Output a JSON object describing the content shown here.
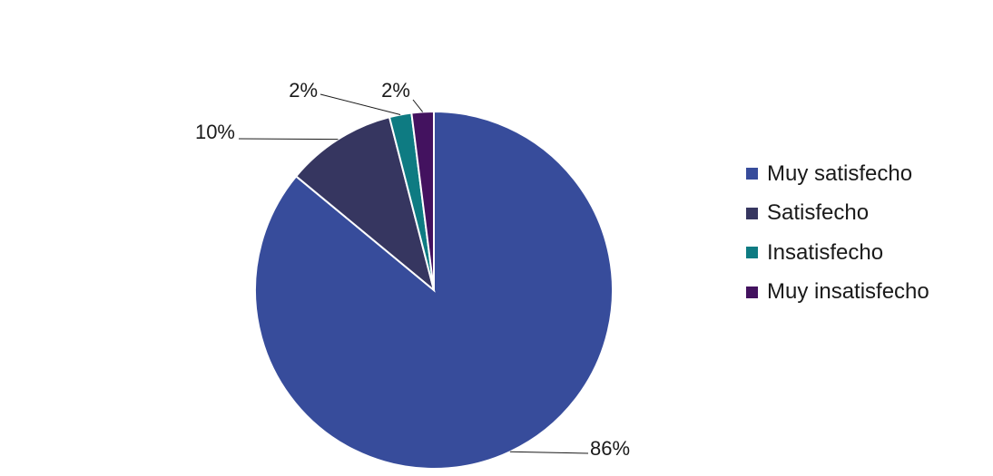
{
  "chart_data": {
    "type": "pie",
    "title": "",
    "categories": [
      "Muy satisfecho",
      "Satisfecho",
      "Insatisfecho",
      "Muy insatisfecho"
    ],
    "values": [
      86,
      10,
      2,
      2
    ],
    "labels": [
      "86%",
      "10%",
      "2%",
      "2%"
    ],
    "colors": [
      "#374c9b",
      "#363660",
      "#0e7b82",
      "#43125f"
    ],
    "legend_position": "right"
  }
}
